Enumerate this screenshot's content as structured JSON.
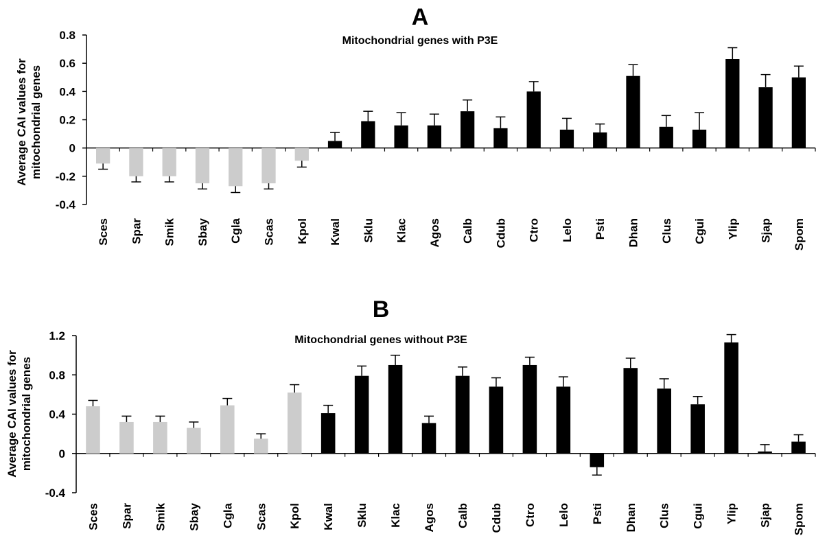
{
  "chart_data": [
    {
      "type": "bar",
      "panel": "A",
      "title": "Mitochondrial genes with P3E",
      "ylabel_lines": [
        "Average CAI values for",
        "mitochondrial genes"
      ],
      "ylim": [
        -0.4,
        0.8
      ],
      "yticks": [
        -0.4,
        -0.2,
        0,
        0.2,
        0.4,
        0.6,
        0.8
      ],
      "ytick_labels": [
        "-0.4",
        "-0.2",
        "0",
        "0.2",
        "0.4",
        "0.6",
        "0.8"
      ],
      "categories": [
        "Sces",
        "Spar",
        "Smik",
        "Sbay",
        "Cgla",
        "Scas",
        "Kpol",
        "Kwal",
        "Sklu",
        "Klac",
        "Agos",
        "Calb",
        "Cdub",
        "Ctro",
        "Lelo",
        "Psti",
        "Dhan",
        "Clus",
        "Cgui",
        "Ylip",
        "Sjap",
        "Spom"
      ],
      "values": [
        -0.11,
        -0.2,
        -0.2,
        -0.25,
        -0.27,
        -0.25,
        -0.09,
        0.05,
        0.19,
        0.16,
        0.16,
        0.26,
        0.14,
        0.4,
        0.13,
        0.11,
        0.51,
        0.15,
        0.13,
        0.63,
        0.43,
        0.5
      ],
      "errors": [
        0.04,
        0.04,
        0.04,
        0.04,
        0.045,
        0.04,
        0.045,
        0.06,
        0.07,
        0.09,
        0.08,
        0.08,
        0.08,
        0.07,
        0.08,
        0.06,
        0.08,
        0.08,
        0.12,
        0.08,
        0.09,
        0.08
      ],
      "colors": [
        "#cccccc",
        "#cccccc",
        "#cccccc",
        "#cccccc",
        "#cccccc",
        "#cccccc",
        "#cccccc",
        "#000000",
        "#000000",
        "#000000",
        "#000000",
        "#000000",
        "#000000",
        "#000000",
        "#000000",
        "#000000",
        "#000000",
        "#000000",
        "#000000",
        "#000000",
        "#000000",
        "#000000"
      ],
      "grid": false
    },
    {
      "type": "bar",
      "panel": "B",
      "title": "Mitochondrial genes without P3E",
      "ylabel_lines": [
        "Average CAI values for",
        "mitochondrial genes"
      ],
      "ylim": [
        -0.4,
        1.2
      ],
      "yticks": [
        -0.4,
        0,
        0.4,
        0.8,
        1.2
      ],
      "ytick_labels": [
        "-0.4",
        "0",
        "0.4",
        "0.8",
        "1.2"
      ],
      "categories": [
        "Sces",
        "Spar",
        "Smik",
        "Sbay",
        "Cgla",
        "Scas",
        "Kpol",
        "Kwal",
        "Sklu",
        "Klac",
        "Agos",
        "Calb",
        "Cdub",
        "Ctro",
        "Lelo",
        "Psti",
        "Dhan",
        "Clus",
        "Cgui",
        "Ylip",
        "Sjap",
        "Spom"
      ],
      "values": [
        0.48,
        0.32,
        0.32,
        0.26,
        0.49,
        0.15,
        0.62,
        0.41,
        0.79,
        0.9,
        0.31,
        0.79,
        0.68,
        0.9,
        0.68,
        -0.14,
        0.87,
        0.66,
        0.5,
        1.13,
        0.02,
        0.12
      ],
      "errors": [
        0.06,
        0.06,
        0.06,
        0.06,
        0.07,
        0.05,
        0.08,
        0.08,
        0.1,
        0.1,
        0.07,
        0.09,
        0.09,
        0.08,
        0.1,
        0.08,
        0.1,
        0.1,
        0.08,
        0.08,
        0.07,
        0.07
      ],
      "colors": [
        "#cccccc",
        "#cccccc",
        "#cccccc",
        "#cccccc",
        "#cccccc",
        "#cccccc",
        "#cccccc",
        "#000000",
        "#000000",
        "#000000",
        "#000000",
        "#000000",
        "#000000",
        "#000000",
        "#000000",
        "#000000",
        "#000000",
        "#000000",
        "#000000",
        "#000000",
        "#000000",
        "#000000"
      ],
      "grid": false
    }
  ]
}
